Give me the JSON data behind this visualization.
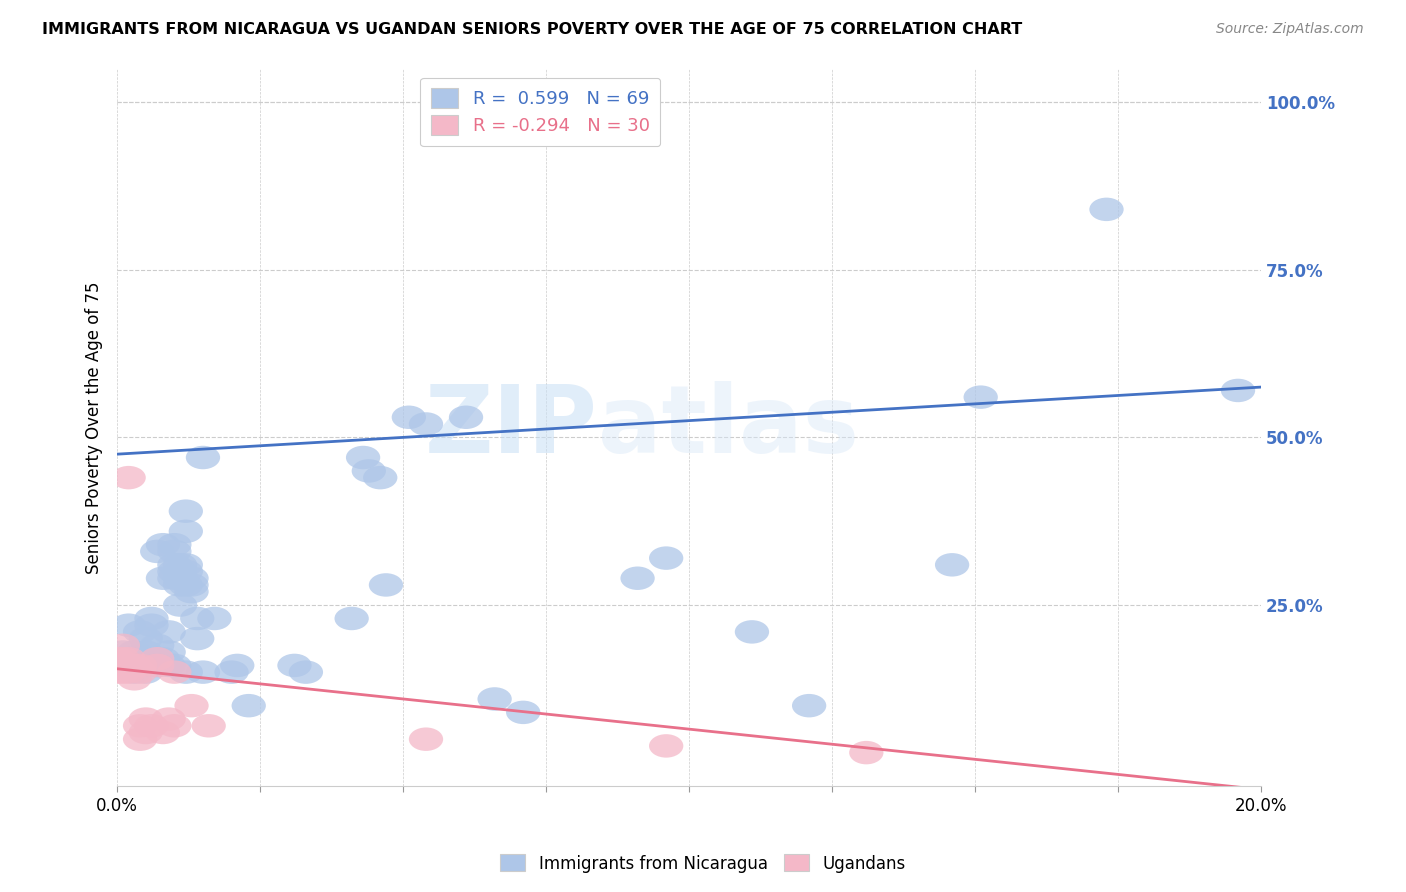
{
  "title": "IMMIGRANTS FROM NICARAGUA VS UGANDAN SENIORS POVERTY OVER THE AGE OF 75 CORRELATION CHART",
  "source": "Source: ZipAtlas.com",
  "ylabel": "Seniors Poverty Over the Age of 75",
  "xlim": [
    0.0,
    0.2
  ],
  "ylim": [
    -0.02,
    1.05
  ],
  "xticks": [
    0.0,
    0.025,
    0.05,
    0.075,
    0.1,
    0.125,
    0.15,
    0.175,
    0.2
  ],
  "xticklabels_show": {
    "0.0": "0.0%",
    "0.20": "20.0%"
  },
  "yticks_right": [
    0.25,
    0.5,
    0.75,
    1.0
  ],
  "yticklabels_right": [
    "25.0%",
    "50.0%",
    "75.0%",
    "100.0%"
  ],
  "legend_blue_r": "0.599",
  "legend_blue_n": "69",
  "legend_pink_r": "-0.294",
  "legend_pink_n": "30",
  "blue_color": "#aec6e8",
  "pink_color": "#f4b8c8",
  "blue_line_color": "#4472c4",
  "pink_line_color": "#e8708a",
  "right_axis_color": "#4472c4",
  "watermark_zip": "ZIP",
  "watermark_atlas": "atlas",
  "blue_scatter": [
    [
      0.001,
      0.18
    ],
    [
      0.002,
      0.22
    ],
    [
      0.003,
      0.15
    ],
    [
      0.003,
      0.18
    ],
    [
      0.004,
      0.16
    ],
    [
      0.004,
      0.21
    ],
    [
      0.005,
      0.15
    ],
    [
      0.005,
      0.18
    ],
    [
      0.005,
      0.2
    ],
    [
      0.006,
      0.17
    ],
    [
      0.006,
      0.22
    ],
    [
      0.006,
      0.23
    ],
    [
      0.007,
      0.33
    ],
    [
      0.007,
      0.16
    ],
    [
      0.007,
      0.19
    ],
    [
      0.008,
      0.34
    ],
    [
      0.008,
      0.29
    ],
    [
      0.008,
      0.17
    ],
    [
      0.009,
      0.16
    ],
    [
      0.009,
      0.18
    ],
    [
      0.009,
      0.21
    ],
    [
      0.01,
      0.31
    ],
    [
      0.01,
      0.34
    ],
    [
      0.01,
      0.33
    ],
    [
      0.01,
      0.3
    ],
    [
      0.01,
      0.29
    ],
    [
      0.01,
      0.16
    ],
    [
      0.011,
      0.3
    ],
    [
      0.011,
      0.28
    ],
    [
      0.011,
      0.31
    ],
    [
      0.011,
      0.29
    ],
    [
      0.011,
      0.25
    ],
    [
      0.012,
      0.31
    ],
    [
      0.012,
      0.3
    ],
    [
      0.012,
      0.28
    ],
    [
      0.012,
      0.36
    ],
    [
      0.012,
      0.39
    ],
    [
      0.012,
      0.15
    ],
    [
      0.013,
      0.28
    ],
    [
      0.013,
      0.29
    ],
    [
      0.013,
      0.27
    ],
    [
      0.014,
      0.23
    ],
    [
      0.014,
      0.2
    ],
    [
      0.015,
      0.15
    ],
    [
      0.015,
      0.47
    ],
    [
      0.017,
      0.23
    ],
    [
      0.02,
      0.15
    ],
    [
      0.021,
      0.16
    ],
    [
      0.023,
      0.1
    ],
    [
      0.031,
      0.16
    ],
    [
      0.033,
      0.15
    ],
    [
      0.041,
      0.23
    ],
    [
      0.043,
      0.47
    ],
    [
      0.044,
      0.45
    ],
    [
      0.046,
      0.44
    ],
    [
      0.047,
      0.28
    ],
    [
      0.051,
      0.53
    ],
    [
      0.054,
      0.52
    ],
    [
      0.061,
      0.53
    ],
    [
      0.066,
      0.11
    ],
    [
      0.071,
      0.09
    ],
    [
      0.091,
      0.29
    ],
    [
      0.096,
      0.32
    ],
    [
      0.111,
      0.21
    ],
    [
      0.121,
      0.1
    ],
    [
      0.146,
      0.31
    ],
    [
      0.151,
      0.56
    ],
    [
      0.173,
      0.84
    ],
    [
      0.196,
      0.57
    ]
  ],
  "pink_scatter": [
    [
      0.0,
      0.17
    ],
    [
      0.0,
      0.15
    ],
    [
      0.001,
      0.17
    ],
    [
      0.001,
      0.15
    ],
    [
      0.001,
      0.16
    ],
    [
      0.001,
      0.19
    ],
    [
      0.002,
      0.17
    ],
    [
      0.002,
      0.15
    ],
    [
      0.002,
      0.16
    ],
    [
      0.002,
      0.44
    ],
    [
      0.003,
      0.14
    ],
    [
      0.003,
      0.16
    ],
    [
      0.004,
      0.15
    ],
    [
      0.004,
      0.16
    ],
    [
      0.004,
      0.05
    ],
    [
      0.004,
      0.07
    ],
    [
      0.005,
      0.08
    ],
    [
      0.005,
      0.06
    ],
    [
      0.006,
      0.07
    ],
    [
      0.007,
      0.17
    ],
    [
      0.007,
      0.16
    ],
    [
      0.008,
      0.06
    ],
    [
      0.009,
      0.08
    ],
    [
      0.01,
      0.15
    ],
    [
      0.01,
      0.07
    ],
    [
      0.013,
      0.1
    ],
    [
      0.016,
      0.07
    ],
    [
      0.054,
      0.05
    ],
    [
      0.096,
      0.04
    ],
    [
      0.131,
      0.03
    ]
  ],
  "blue_trendline": [
    [
      0.0,
      0.475
    ],
    [
      0.2,
      0.575
    ]
  ],
  "pink_trendline": [
    [
      0.0,
      0.155
    ],
    [
      0.2,
      -0.025
    ]
  ]
}
